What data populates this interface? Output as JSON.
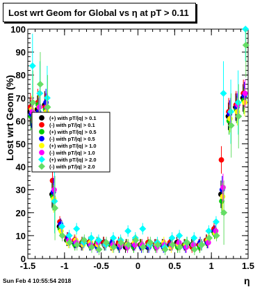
{
  "title": "Lost wrt Geom for Global vs  η at pT > 0.11",
  "footer": "Sun Feb  4 10:55:54 2018",
  "chart_data": {
    "type": "scatter",
    "xlabel": "η",
    "ylabel": "Lost wrt Geom (%)",
    "xlim": [
      -1.5,
      1.5
    ],
    "ylim": [
      0,
      100
    ],
    "xticks": [
      -1.5,
      -1,
      -0.5,
      0,
      0.5,
      1,
      1.5
    ],
    "yticks": [
      0,
      10,
      20,
      30,
      40,
      50,
      60,
      70,
      80,
      90,
      100
    ],
    "legend_placement": "left-middle",
    "series": [
      {
        "name": "(+) with pT/|q| > 0.1",
        "color": "#000000",
        "marker": "circle",
        "x": [
          -1.45,
          -1.35,
          -1.25,
          -1.15,
          -1.05,
          -0.95,
          -0.85,
          -0.75,
          -0.65,
          -0.55,
          -0.45,
          -0.35,
          -0.25,
          -0.15,
          -0.05,
          0.05,
          0.15,
          0.25,
          0.35,
          0.45,
          0.55,
          0.65,
          0.75,
          0.85,
          0.95,
          1.05,
          1.15,
          1.25,
          1.35,
          1.45
        ],
        "y": [
          64,
          65,
          67,
          28,
          14,
          8,
          7,
          6,
          7,
          6,
          7,
          6,
          6,
          5,
          6,
          6,
          5,
          6,
          6,
          6,
          7,
          6,
          6,
          6,
          8,
          12,
          28,
          62,
          66,
          70
        ]
      },
      {
        "name": "(-) with pT/|q| > 0.1",
        "color": "#ff0000",
        "marker": "circle",
        "x": [
          -1.45,
          -1.35,
          -1.25,
          -1.15,
          -1.05,
          -0.95,
          -0.85,
          -0.75,
          -0.65,
          -0.55,
          -0.45,
          -0.35,
          -0.25,
          -0.15,
          -0.05,
          0.05,
          0.15,
          0.25,
          0.35,
          0.45,
          0.55,
          0.65,
          0.75,
          0.85,
          0.95,
          1.05,
          1.15,
          1.25,
          1.35,
          1.45
        ],
        "y": [
          66,
          68,
          66,
          34,
          16,
          9,
          8,
          7,
          7,
          6,
          7,
          6,
          7,
          6,
          6,
          6,
          7,
          6,
          6,
          7,
          6,
          6,
          5,
          6,
          8,
          13,
          43,
          64,
          67,
          72
        ]
      },
      {
        "name": "(+) with pT/|q| > 0.5",
        "color": "#00cc00",
        "marker": "circle",
        "x": [
          -1.45,
          -1.35,
          -1.25,
          -1.15,
          -1.05,
          -0.95,
          -0.85,
          -0.75,
          -0.65,
          -0.55,
          -0.45,
          -0.35,
          -0.25,
          -0.15,
          -0.05,
          0.05,
          0.15,
          0.25,
          0.35,
          0.45,
          0.55,
          0.65,
          0.75,
          0.85,
          0.95,
          1.05,
          1.15,
          1.25,
          1.35,
          1.45
        ],
        "y": [
          62,
          67,
          65,
          27,
          13,
          8,
          6,
          7,
          6,
          7,
          6,
          6,
          5,
          6,
          5,
          6,
          6,
          5,
          6,
          6,
          5,
          6,
          6,
          5,
          7,
          11,
          25,
          60,
          65,
          69
        ]
      },
      {
        "name": "(-) with pT/|q| > 0.5",
        "color": "#0000ff",
        "marker": "circle",
        "x": [
          -1.45,
          -1.35,
          -1.25,
          -1.15,
          -1.05,
          -0.95,
          -0.85,
          -0.75,
          -0.65,
          -0.55,
          -0.45,
          -0.35,
          -0.25,
          -0.15,
          -0.05,
          0.05,
          0.15,
          0.25,
          0.35,
          0.45,
          0.55,
          0.65,
          0.75,
          0.85,
          0.95,
          1.05,
          1.15,
          1.25,
          1.35,
          1.45
        ],
        "y": [
          63,
          64,
          68,
          29,
          15,
          9,
          7,
          6,
          6,
          5,
          6,
          7,
          5,
          6,
          6,
          5,
          5,
          6,
          5,
          6,
          6,
          5,
          6,
          7,
          7,
          12,
          30,
          63,
          66,
          71
        ]
      },
      {
        "name": "(+) with pT/|q| > 1.0",
        "color": "#ffff00",
        "marker": "circle",
        "x": [
          -1.45,
          -1.35,
          -1.25,
          -1.15,
          -1.05,
          -0.95,
          -0.85,
          -0.75,
          -0.65,
          -0.55,
          -0.45,
          -0.35,
          -0.25,
          -0.15,
          -0.05,
          0.05,
          0.15,
          0.25,
          0.35,
          0.45,
          0.55,
          0.65,
          0.75,
          0.85,
          0.95,
          1.05,
          1.15,
          1.25,
          1.35,
          1.45
        ],
        "y": [
          65,
          66,
          64,
          26,
          12,
          7,
          8,
          6,
          7,
          6,
          6,
          5,
          6,
          6,
          7,
          6,
          6,
          6,
          7,
          5,
          6,
          6,
          6,
          6,
          8,
          11,
          27,
          61,
          64,
          68
        ]
      },
      {
        "name": "(-) with pT/|q| > 1.0",
        "color": "#ff00ff",
        "marker": "circle",
        "x": [
          -1.45,
          -1.35,
          -1.25,
          -1.15,
          -1.05,
          -0.95,
          -0.85,
          -0.75,
          -0.65,
          -0.55,
          -0.45,
          -0.35,
          -0.25,
          -0.15,
          -0.05,
          0.05,
          0.15,
          0.25,
          0.35,
          0.45,
          0.55,
          0.65,
          0.75,
          0.85,
          0.95,
          1.05,
          1.15,
          1.25,
          1.35,
          1.45
        ],
        "y": [
          64,
          66,
          66,
          30,
          14,
          8,
          7,
          7,
          6,
          7,
          6,
          6,
          6,
          5,
          6,
          6,
          6,
          5,
          6,
          6,
          7,
          5,
          6,
          6,
          7,
          12,
          31,
          64,
          67,
          72
        ]
      },
      {
        "name": "(+) with pT/|q| > 2.0",
        "color": "#00ffff",
        "marker": "diamond",
        "x": [
          -1.45,
          -1.35,
          -1.25,
          -1.15,
          -1.05,
          -0.95,
          -0.85,
          -0.75,
          -0.65,
          -0.55,
          -0.45,
          -0.35,
          -0.25,
          -0.15,
          -0.05,
          0.05,
          0.15,
          0.25,
          0.35,
          0.45,
          0.55,
          0.65,
          0.75,
          0.85,
          0.95,
          1.05,
          1.15,
          1.25,
          1.35,
          1.45
        ],
        "y": [
          84,
          72,
          70,
          25,
          14,
          10,
          13,
          7,
          9,
          8,
          6,
          9,
          8,
          12,
          9,
          13,
          6,
          7,
          5,
          9,
          10,
          7,
          9,
          6,
          12,
          16,
          72,
          64,
          68,
          100
        ]
      },
      {
        "name": "(-) with pT/|q| > 2.0",
        "color": "#66dd66",
        "marker": "diamond",
        "x": [
          -1.45,
          -1.35,
          -1.25,
          -1.15,
          -1.05,
          -0.95,
          -0.85,
          -0.75,
          -0.65,
          -0.55,
          -0.45,
          -0.35,
          -0.25,
          -0.15,
          -0.05,
          0.05,
          0.15,
          0.25,
          0.35,
          0.45,
          0.55,
          0.65,
          0.75,
          0.85,
          0.95,
          1.05,
          1.15,
          1.25,
          1.35,
          1.45
        ],
        "y": [
          68,
          76,
          66,
          22,
          10,
          7,
          6,
          8,
          5,
          4,
          7,
          5,
          7,
          6,
          8,
          5,
          7,
          6,
          4,
          6,
          5,
          7,
          4,
          6,
          9,
          10,
          20,
          58,
          62,
          93
        ]
      }
    ]
  }
}
